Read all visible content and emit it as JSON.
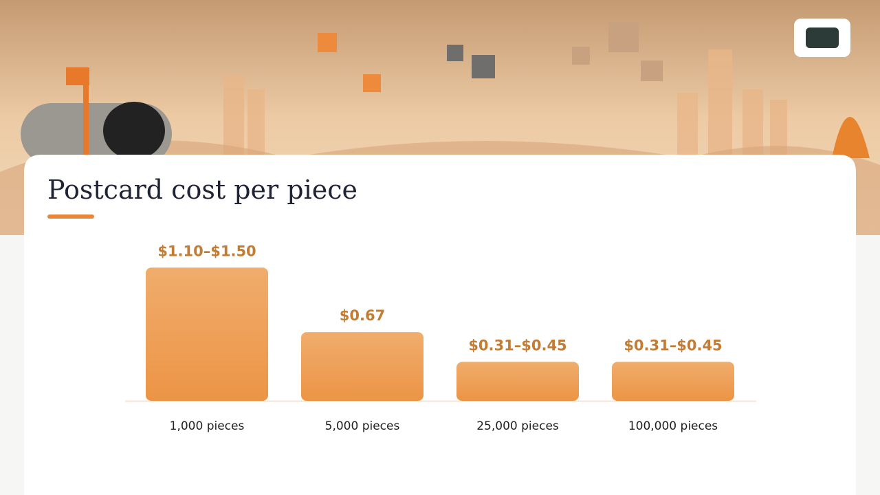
{
  "chart_data": {
    "type": "bar",
    "title": "Postcard cost per piece",
    "categories": [
      "1,000 pieces",
      "5,000 pieces",
      "25,000 pieces",
      "100,000 pieces"
    ],
    "low": [
      1.1,
      0.67,
      0.31,
      0.31
    ],
    "high": [
      1.5,
      0.67,
      0.45,
      0.45
    ],
    "value_labels": [
      "$1.10–$1.50",
      "$0.67",
      "$0.31–$0.45",
      "$0.31–$0.45"
    ],
    "color": "#ee9d55"
  }
}
